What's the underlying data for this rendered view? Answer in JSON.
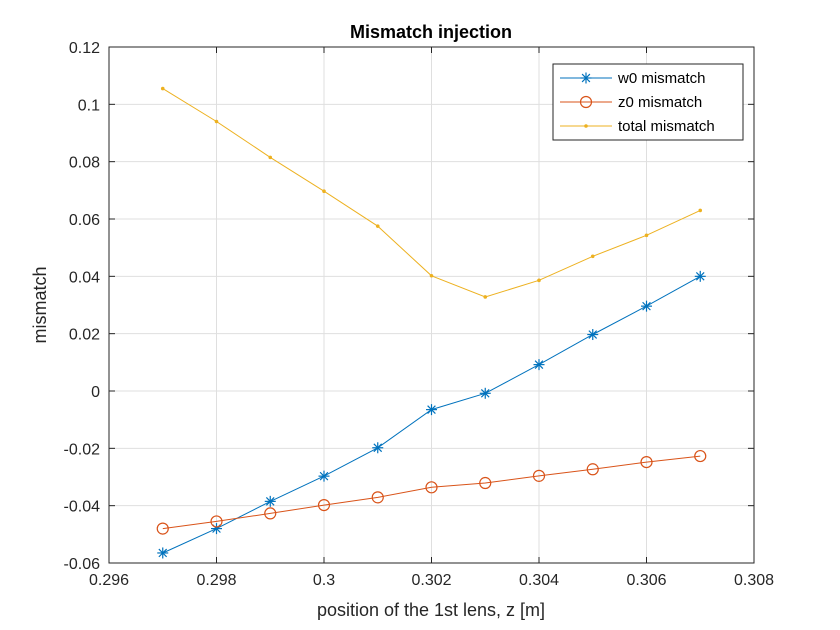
{
  "chart_data": {
    "type": "line",
    "title": "Mismatch injection",
    "xlabel": "position of the 1st lens, z [m]",
    "ylabel": "mismatch",
    "xlim": [
      0.296,
      0.308
    ],
    "ylim": [
      -0.06,
      0.12
    ],
    "grid": true,
    "legend_position": "top-right",
    "x_ticks": [
      0.296,
      0.298,
      0.3,
      0.302,
      0.304,
      0.306,
      0.308
    ],
    "x_tick_labels": [
      "0.296",
      "0.298",
      "0.3",
      "0.302",
      "0.304",
      "0.306",
      "0.308"
    ],
    "y_ticks": [
      -0.06,
      -0.04,
      -0.02,
      0,
      0.02,
      0.04,
      0.06,
      0.08,
      0.1,
      0.12
    ],
    "y_tick_labels": [
      "-0.06",
      "-0.04",
      "-0.02",
      "0",
      "0.02",
      "0.04",
      "0.06",
      "0.08",
      "0.1",
      "0.12"
    ],
    "x": [
      0.297,
      0.298,
      0.299,
      0.3,
      0.301,
      0.302,
      0.303,
      0.304,
      0.305,
      0.306,
      0.307
    ],
    "series": [
      {
        "name": "w0 mismatch",
        "color": "#0072BD",
        "marker": "asterisk",
        "values": [
          -0.0565,
          -0.048,
          -0.0385,
          -0.0297,
          -0.0198,
          -0.0065,
          -0.0008,
          0.0092,
          0.0197,
          0.0296,
          0.04
        ]
      },
      {
        "name": "z0 mismatch",
        "color": "#D95319",
        "marker": "circle",
        "values": [
          -0.048,
          -0.0455,
          -0.0427,
          -0.0398,
          -0.0371,
          -0.0336,
          -0.0321,
          -0.0296,
          -0.0273,
          -0.0248,
          -0.0227
        ]
      },
      {
        "name": "total mismatch",
        "color": "#EDB120",
        "marker": "dot",
        "values": [
          0.1055,
          0.094,
          0.0815,
          0.0697,
          0.0575,
          0.0402,
          0.0328,
          0.0386,
          0.047,
          0.0543,
          0.063
        ]
      }
    ]
  }
}
